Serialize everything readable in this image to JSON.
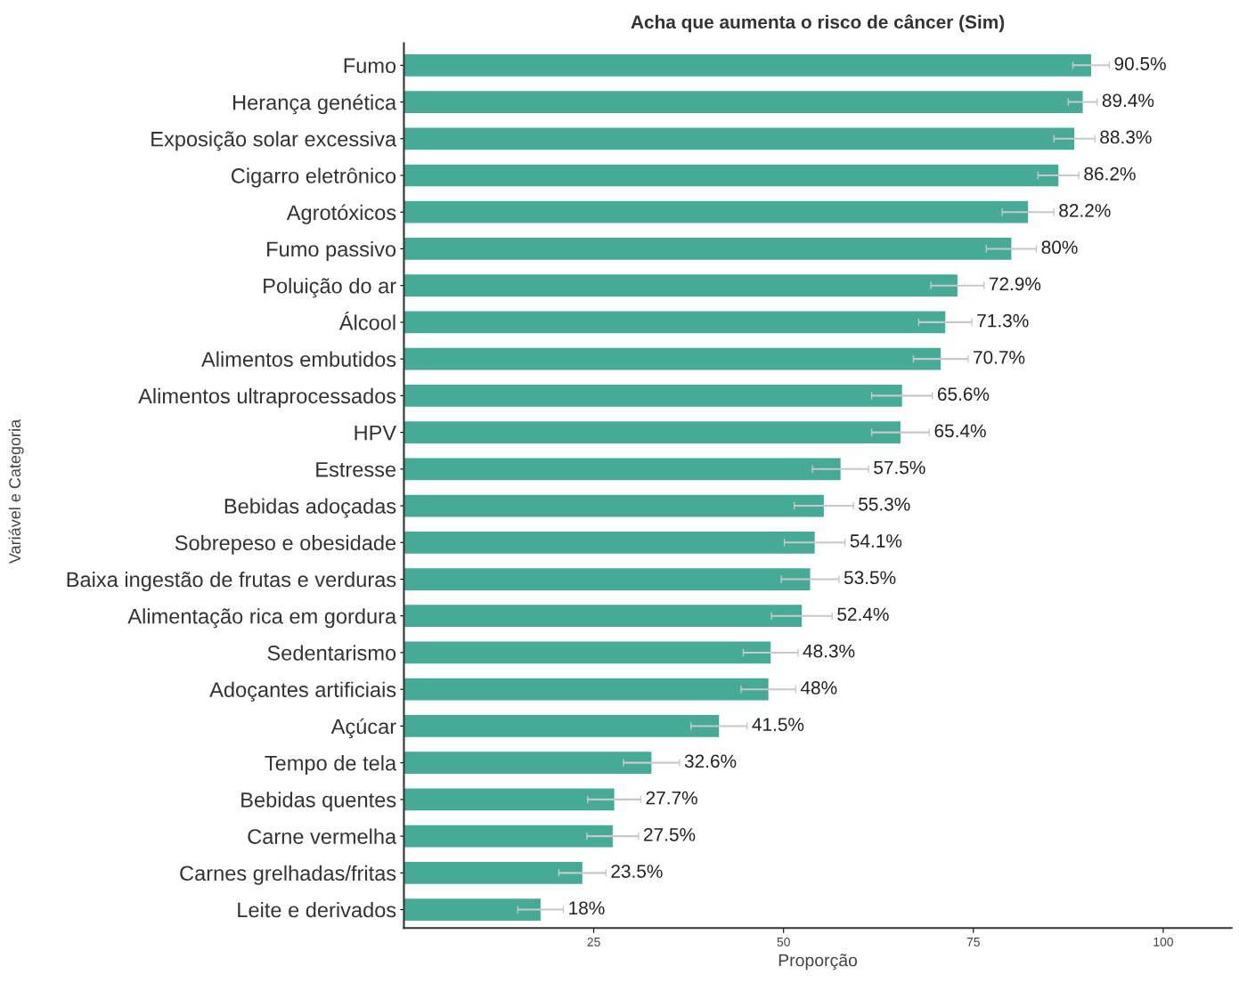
{
  "chart_data": {
    "type": "bar",
    "orientation": "horizontal",
    "title": "Acha que aumenta o risco de câncer (Sim)",
    "xlabel": "Proporção",
    "ylabel": "Variável e Categoria",
    "categories": [
      "Fumo",
      "Herança genética",
      "Exposição solar excessiva",
      "Cigarro eletrônico",
      "Agrotóxicos",
      "Fumo passivo",
      "Poluição do ar",
      "Álcool",
      "Alimentos embutidos",
      "Alimentos ultraprocessados",
      "HPV",
      "Estresse",
      "Bebidas adoçadas",
      "Sobrepeso e obesidade",
      "Baixa ingestão de frutas e verduras",
      "Alimentação rica em gordura",
      "Sedentarismo",
      "Adoçantes artificiais",
      "Açúcar",
      "Tempo de tela",
      "Bebidas quentes",
      "Carne vermelha",
      "Carnes grelhadas/fritas",
      "Leite e derivados"
    ],
    "series": [
      {
        "color": "#46ab96",
        "values": [
          90.5,
          89.4,
          88.3,
          86.2,
          82.2,
          80,
          72.9,
          71.3,
          70.7,
          65.6,
          65.4,
          57.5,
          55.3,
          54.1,
          53.5,
          52.4,
          48.3,
          48,
          41.5,
          32.6,
          27.7,
          27.5,
          23.5,
          18
        ],
        "errors": [
          2.4,
          1.9,
          2.7,
          2.7,
          3.4,
          3.3,
          3.5,
          3.5,
          3.6,
          4,
          3.8,
          3.7,
          3.9,
          4,
          3.8,
          4,
          3.6,
          3.6,
          3.7,
          3.7,
          3.5,
          3.4,
          3.1,
          3
        ],
        "value_labels": [
          "90.5%",
          "89.4%",
          "88.3%",
          "86.2%",
          "82.2%",
          "80%",
          "72.9%",
          "71.3%",
          "70.7%",
          "65.6%",
          "65.4%",
          "57.5%",
          "55.3%",
          "54.1%",
          "53.5%",
          "52.4%",
          "48.3%",
          "48%",
          "41.5%",
          "32.6%",
          "27.7%",
          "27.5%",
          "23.5%",
          "18%"
        ]
      }
    ],
    "xlim": [
      0,
      109
    ],
    "xticks": [
      25,
      50,
      75,
      100
    ],
    "grid": false,
    "legend": false
  }
}
